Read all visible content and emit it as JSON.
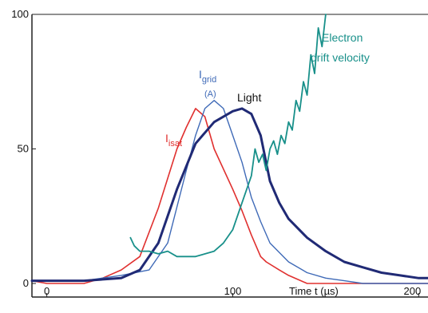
{
  "chart_data": {
    "type": "line",
    "xlabel": "Time  t  (µs)",
    "ylabel": "",
    "xlim": [
      -8,
      205
    ],
    "ylim": [
      0,
      100
    ],
    "x_ticks": [
      "0",
      "100",
      "200"
    ],
    "y_ticks": [
      "0",
      "50",
      "100"
    ],
    "grid": false,
    "series": [
      {
        "name": "I_isat",
        "label_main": "I",
        "label_sub": "isat",
        "color": "#e0302f",
        "points": [
          [
            -8,
            1
          ],
          [
            0,
            0
          ],
          [
            10,
            0
          ],
          [
            20,
            0
          ],
          [
            30,
            2
          ],
          [
            40,
            5
          ],
          [
            50,
            10
          ],
          [
            60,
            28
          ],
          [
            70,
            50
          ],
          [
            75,
            58
          ],
          [
            80,
            65
          ],
          [
            85,
            62
          ],
          [
            90,
            50
          ],
          [
            100,
            35
          ],
          [
            105,
            27
          ],
          [
            110,
            18
          ],
          [
            115,
            10
          ],
          [
            118,
            8
          ],
          [
            125,
            5
          ],
          [
            130,
            3
          ],
          [
            140,
            0
          ],
          [
            150,
            0
          ],
          [
            160,
            0
          ],
          [
            170,
            0
          ],
          [
            180,
            0
          ],
          [
            190,
            0
          ],
          [
            200,
            0
          ],
          [
            205,
            0
          ]
        ]
      },
      {
        "name": "I_grid (A)",
        "label_main": "I",
        "label_sub": "grid",
        "label_extra": "(A)",
        "color": "#3f6ab7",
        "points": [
          [
            -8,
            1
          ],
          [
            0,
            1
          ],
          [
            20,
            1
          ],
          [
            40,
            3
          ],
          [
            55,
            5
          ],
          [
            65,
            15
          ],
          [
            75,
            42
          ],
          [
            80,
            55
          ],
          [
            85,
            65
          ],
          [
            90,
            68
          ],
          [
            95,
            65
          ],
          [
            100,
            55
          ],
          [
            105,
            45
          ],
          [
            110,
            32
          ],
          [
            115,
            23
          ],
          [
            120,
            15
          ],
          [
            130,
            8
          ],
          [
            140,
            4
          ],
          [
            150,
            2
          ],
          [
            160,
            1
          ],
          [
            170,
            0
          ],
          [
            200,
            0
          ],
          [
            205,
            0
          ]
        ]
      },
      {
        "name": "Light",
        "label_main": "Light",
        "color": "#202a75",
        "points": [
          [
            -8,
            1
          ],
          [
            0,
            1
          ],
          [
            20,
            1
          ],
          [
            40,
            2
          ],
          [
            50,
            5
          ],
          [
            60,
            15
          ],
          [
            70,
            35
          ],
          [
            80,
            52
          ],
          [
            90,
            60
          ],
          [
            100,
            64
          ],
          [
            105,
            65
          ],
          [
            110,
            63
          ],
          [
            115,
            55
          ],
          [
            120,
            38
          ],
          [
            125,
            30
          ],
          [
            130,
            24
          ],
          [
            140,
            17
          ],
          [
            150,
            12
          ],
          [
            160,
            8
          ],
          [
            170,
            6
          ],
          [
            180,
            4
          ],
          [
            190,
            3
          ],
          [
            200,
            2
          ],
          [
            205,
            2
          ]
        ]
      },
      {
        "name": "Electron drift velocity",
        "label_main": "Electron",
        "label_line2": "drift velocity",
        "color": "#18908a",
        "points": [
          [
            45,
            17
          ],
          [
            47,
            14
          ],
          [
            50,
            12
          ],
          [
            55,
            12
          ],
          [
            60,
            11
          ],
          [
            65,
            12
          ],
          [
            70,
            10
          ],
          [
            80,
            10
          ],
          [
            90,
            12
          ],
          [
            95,
            15
          ],
          [
            100,
            20
          ],
          [
            105,
            30
          ],
          [
            110,
            40
          ],
          [
            112,
            50
          ],
          [
            114,
            45
          ],
          [
            116,
            48
          ],
          [
            118,
            42
          ],
          [
            120,
            50
          ],
          [
            122,
            53
          ],
          [
            124,
            48
          ],
          [
            126,
            55
          ],
          [
            128,
            52
          ],
          [
            130,
            60
          ],
          [
            132,
            57
          ],
          [
            134,
            68
          ],
          [
            136,
            64
          ],
          [
            138,
            75
          ],
          [
            140,
            70
          ],
          [
            142,
            85
          ],
          [
            144,
            78
          ],
          [
            146,
            95
          ],
          [
            148,
            88
          ],
          [
            150,
            100
          ]
        ]
      }
    ]
  }
}
